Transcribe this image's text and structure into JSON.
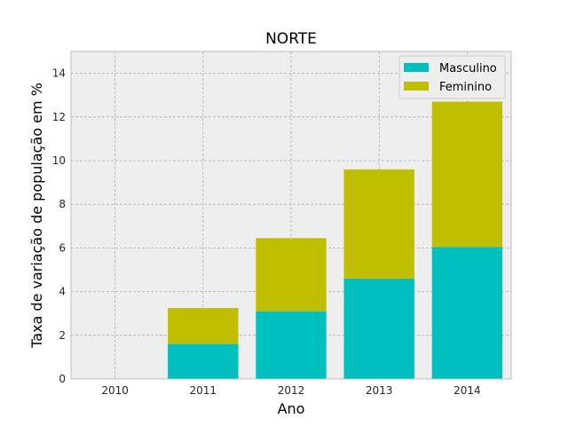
{
  "chart_data": {
    "type": "bar",
    "stacked": true,
    "title": "NORTE",
    "xlabel": "Ano",
    "ylabel": "Taxa de variação de população em %",
    "categories": [
      "2010",
      "2011",
      "2012",
      "2013",
      "2014"
    ],
    "series": [
      {
        "name": "Masculino",
        "values": [
          0,
          1.6,
          3.1,
          4.6,
          6.05
        ],
        "color": "#00bfbf"
      },
      {
        "name": "Feminino",
        "values": [
          0,
          1.65,
          3.35,
          5.0,
          6.65
        ],
        "color": "#bfbf00"
      }
    ],
    "ylim": [
      0,
      15
    ],
    "yticks": [
      "0",
      "2",
      "4",
      "6",
      "8",
      "10",
      "12",
      "14"
    ],
    "grid": true,
    "legend_position": "top-right",
    "colors": {
      "plot_background": "#eeeeee",
      "grid": "#b0b0b0",
      "frame": "#bcbcbc"
    }
  }
}
